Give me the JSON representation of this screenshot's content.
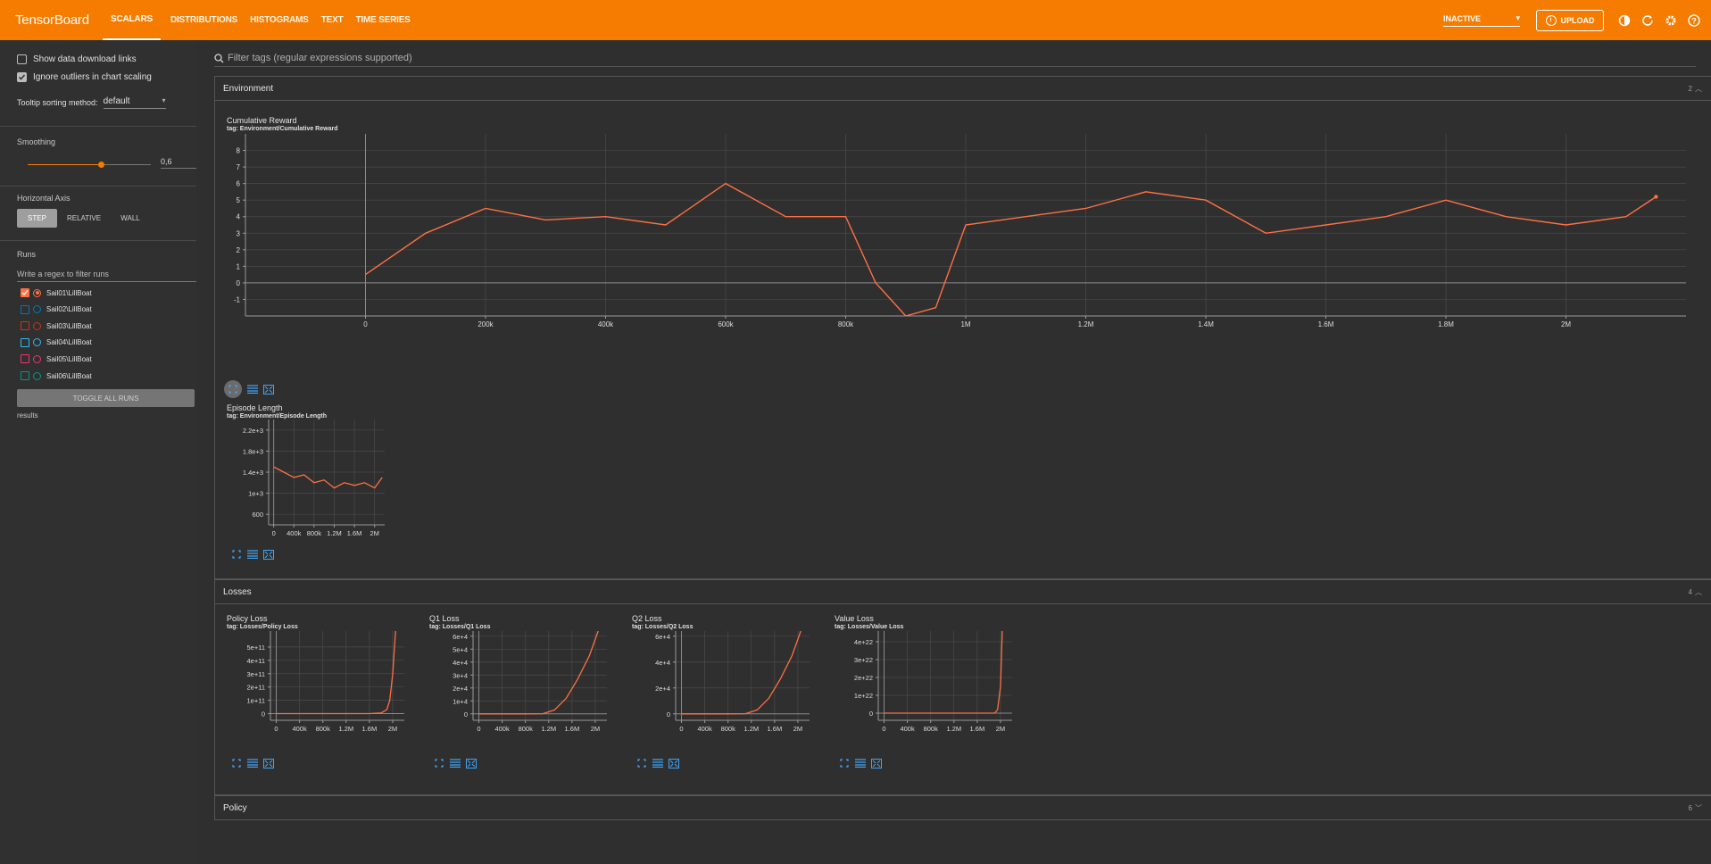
{
  "app": {
    "title": "TensorBoard"
  },
  "tabs": [
    "SCALARS",
    "DISTRIBUTIONS",
    "HISTOGRAMS",
    "TEXT",
    "TIME SERIES"
  ],
  "header": {
    "reload_status": "INACTIVE",
    "upload_label": "UPLOAD"
  },
  "sidebar": {
    "show_download_links": "Show data download links",
    "ignore_outliers": "Ignore outliers in chart scaling",
    "tooltip_sorting_label": "Tooltip sorting method:",
    "tooltip_sorting_value": "default",
    "smoothing_label": "Smoothing",
    "smoothing_value": "0,6",
    "smoothing_fraction": 0.6,
    "horizontal_axis_label": "Horizontal Axis",
    "axis_options": [
      "STEP",
      "RELATIVE",
      "WALL"
    ],
    "runs_label": "Runs",
    "runs_filter_placeholder": "Write a regex to filter runs",
    "runs": [
      {
        "name": "Sail01\\LillBoat",
        "color": "#ff7043",
        "checked": true
      },
      {
        "name": "Sail02\\LillBoat",
        "color": "#0077bb",
        "checked": false
      },
      {
        "name": "Sail03\\LillBoat",
        "color": "#cc3311",
        "checked": false
      },
      {
        "name": "Sail04\\LillBoat",
        "color": "#33bbee",
        "checked": false
      },
      {
        "name": "Sail05\\LillBoat",
        "color": "#ee3377",
        "checked": false
      },
      {
        "name": "Sail06\\LillBoat",
        "color": "#009988",
        "checked": false
      }
    ],
    "toggle_all_label": "TOGGLE ALL RUNS",
    "results_label": "results"
  },
  "filter": {
    "placeholder": "Filter tags (regular expressions supported)"
  },
  "sections": {
    "environment": {
      "title": "Environment",
      "count": "2"
    },
    "losses": {
      "title": "Losses",
      "count": "4"
    },
    "policy": {
      "title": "Policy",
      "count": "6"
    }
  },
  "colors": {
    "accent": "#f57c00",
    "series": "#ff7043",
    "icon": "#42a5f5"
  },
  "chart_data": [
    {
      "type": "line",
      "title": "Cumulative Reward",
      "tag": "tag: Environment/Cumulative Reward",
      "x_ticks": [
        "0",
        "200k",
        "400k",
        "600k",
        "800k",
        "1M",
        "1.2M",
        "1.4M",
        "1.6M",
        "1.8M",
        "2M"
      ],
      "y_ticks": [
        "-1",
        "0",
        "1",
        "2",
        "3",
        "4",
        "5",
        "6",
        "7",
        "8"
      ],
      "xlim": [
        -200000,
        2200000
      ],
      "ylim": [
        -2,
        9
      ],
      "series": [
        {
          "x": [
            0,
            100000,
            200000,
            300000,
            400000,
            500000,
            600000,
            700000,
            800000,
            850000,
            900000,
            950000,
            1000000,
            1100000,
            1200000,
            1300000,
            1400000,
            1500000,
            1600000,
            1700000,
            1800000,
            1900000,
            2000000,
            2100000,
            2150000
          ],
          "y": [
            0.5,
            3,
            4.5,
            3.8,
            4,
            3.5,
            6,
            4,
            4,
            0,
            -2,
            -1.5,
            3.5,
            4,
            4.5,
            5.5,
            5,
            3,
            3.5,
            4,
            5,
            4,
            3.5,
            4,
            5.2
          ]
        }
      ],
      "grid": true
    },
    {
      "type": "line",
      "title": "Episode Length",
      "tag": "tag: Environment/Episode Length",
      "x_ticks": [
        "0",
        "400k",
        "800k",
        "1.2M",
        "1.6M",
        "2M"
      ],
      "y_ticks": [
        "600",
        "1e+3",
        "1.4e+3",
        "1.8e+3",
        "2.2e+3"
      ],
      "xlim": [
        -100000,
        2200000
      ],
      "ylim": [
        400,
        2400
      ],
      "series": [
        {
          "x": [
            0,
            200000,
            400000,
            600000,
            800000,
            1000000,
            1200000,
            1400000,
            1600000,
            1800000,
            2000000,
            2150000
          ],
          "y": [
            1500,
            1400,
            1300,
            1350,
            1200,
            1250,
            1100,
            1200,
            1150,
            1200,
            1100,
            1300
          ]
        }
      ],
      "grid": true
    },
    {
      "type": "line",
      "title": "Policy Loss",
      "tag": "tag: Losses/Policy Loss",
      "x_ticks": [
        "0",
        "400k",
        "800k",
        "1.2M",
        "1.6M",
        "2M"
      ],
      "y_ticks": [
        "0",
        "1e+11",
        "2e+11",
        "3e+11",
        "4e+11",
        "5e+11"
      ],
      "xlim": [
        -100000,
        2200000
      ],
      "ylim": [
        -50000000000.0,
        620000000000.0
      ],
      "series": [
        {
          "x": [
            0,
            400000,
            800000,
            1200000,
            1600000,
            1800000,
            1900000,
            1950000,
            2000000,
            2050000
          ],
          "y": [
            0,
            0,
            0,
            0,
            0,
            5000000000.0,
            30000000000.0,
            100000000000.0,
            300000000000.0,
            620000000000.0
          ]
        }
      ],
      "grid": true
    },
    {
      "type": "line",
      "title": "Q1 Loss",
      "tag": "tag: Losses/Q1 Loss",
      "x_ticks": [
        "0",
        "400k",
        "800k",
        "1.2M",
        "1.6M",
        "2M"
      ],
      "y_ticks": [
        "0",
        "1e+4",
        "2e+4",
        "3e+4",
        "4e+4",
        "5e+4",
        "6e+4"
      ],
      "xlim": [
        -100000,
        2200000
      ],
      "ylim": [
        -5000,
        64000
      ],
      "series": [
        {
          "x": [
            0,
            400000,
            800000,
            1100000,
            1300000,
            1500000,
            1700000,
            1900000,
            2050000
          ],
          "y": [
            0,
            0,
            0,
            100,
            3000,
            12000,
            27000,
            45000,
            64000
          ]
        }
      ],
      "grid": true
    },
    {
      "type": "line",
      "title": "Q2 Loss",
      "tag": "tag: Losses/Q2 Loss",
      "x_ticks": [
        "0",
        "400k",
        "800k",
        "1.2M",
        "1.6M",
        "2M"
      ],
      "y_ticks": [
        "0",
        "2e+4",
        "4e+4",
        "6e+4"
      ],
      "xlim": [
        -100000,
        2200000
      ],
      "ylim": [
        -5000,
        64000
      ],
      "series": [
        {
          "x": [
            0,
            400000,
            800000,
            1100000,
            1300000,
            1500000,
            1700000,
            1900000,
            2050000
          ],
          "y": [
            0,
            0,
            0,
            100,
            3000,
            12000,
            27000,
            45000,
            64000
          ]
        }
      ],
      "grid": true
    },
    {
      "type": "line",
      "title": "Value Loss",
      "tag": "tag: Losses/Value Loss",
      "x_ticks": [
        "0",
        "400k",
        "800k",
        "1.2M",
        "1.6M",
        "2M"
      ],
      "y_ticks": [
        "0",
        "1e+22",
        "2e+22",
        "3e+22",
        "4e+22"
      ],
      "xlim": [
        -100000,
        2200000
      ],
      "ylim": [
        -4e+21,
        4.6e+22
      ],
      "series": [
        {
          "x": [
            0,
            400000,
            800000,
            1200000,
            1600000,
            1900000,
            1950000,
            2000000,
            2030000
          ],
          "y": [
            0,
            0,
            0,
            0,
            0,
            0,
            2e+21,
            1.5e+22,
            4.6e+22
          ]
        }
      ],
      "grid": true
    }
  ]
}
